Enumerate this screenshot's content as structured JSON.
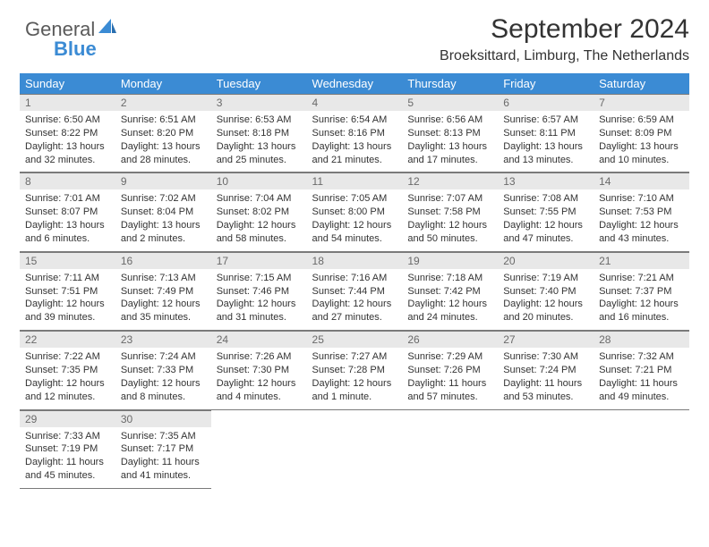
{
  "brand": {
    "text1": "General",
    "text2": "Blue"
  },
  "header": {
    "title": "September 2024",
    "location": "Broeksittard, Limburg, The Netherlands"
  },
  "colors": {
    "header_bg": "#3b8bd4",
    "header_text": "#ffffff",
    "daynum_bg": "#e8e8e8",
    "daynum_text": "#6a6a6a",
    "border": "#7a7a7a",
    "body_text": "#333333",
    "page_bg": "#ffffff"
  },
  "dow": [
    "Sunday",
    "Monday",
    "Tuesday",
    "Wednesday",
    "Thursday",
    "Friday",
    "Saturday"
  ],
  "weeks": [
    [
      {
        "n": "1",
        "sr": "6:50 AM",
        "ss": "8:22 PM",
        "dl": "13 hours and 32 minutes."
      },
      {
        "n": "2",
        "sr": "6:51 AM",
        "ss": "8:20 PM",
        "dl": "13 hours and 28 minutes."
      },
      {
        "n": "3",
        "sr": "6:53 AM",
        "ss": "8:18 PM",
        "dl": "13 hours and 25 minutes."
      },
      {
        "n": "4",
        "sr": "6:54 AM",
        "ss": "8:16 PM",
        "dl": "13 hours and 21 minutes."
      },
      {
        "n": "5",
        "sr": "6:56 AM",
        "ss": "8:13 PM",
        "dl": "13 hours and 17 minutes."
      },
      {
        "n": "6",
        "sr": "6:57 AM",
        "ss": "8:11 PM",
        "dl": "13 hours and 13 minutes."
      },
      {
        "n": "7",
        "sr": "6:59 AM",
        "ss": "8:09 PM",
        "dl": "13 hours and 10 minutes."
      }
    ],
    [
      {
        "n": "8",
        "sr": "7:01 AM",
        "ss": "8:07 PM",
        "dl": "13 hours and 6 minutes."
      },
      {
        "n": "9",
        "sr": "7:02 AM",
        "ss": "8:04 PM",
        "dl": "13 hours and 2 minutes."
      },
      {
        "n": "10",
        "sr": "7:04 AM",
        "ss": "8:02 PM",
        "dl": "12 hours and 58 minutes."
      },
      {
        "n": "11",
        "sr": "7:05 AM",
        "ss": "8:00 PM",
        "dl": "12 hours and 54 minutes."
      },
      {
        "n": "12",
        "sr": "7:07 AM",
        "ss": "7:58 PM",
        "dl": "12 hours and 50 minutes."
      },
      {
        "n": "13",
        "sr": "7:08 AM",
        "ss": "7:55 PM",
        "dl": "12 hours and 47 minutes."
      },
      {
        "n": "14",
        "sr": "7:10 AM",
        "ss": "7:53 PM",
        "dl": "12 hours and 43 minutes."
      }
    ],
    [
      {
        "n": "15",
        "sr": "7:11 AM",
        "ss": "7:51 PM",
        "dl": "12 hours and 39 minutes."
      },
      {
        "n": "16",
        "sr": "7:13 AM",
        "ss": "7:49 PM",
        "dl": "12 hours and 35 minutes."
      },
      {
        "n": "17",
        "sr": "7:15 AM",
        "ss": "7:46 PM",
        "dl": "12 hours and 31 minutes."
      },
      {
        "n": "18",
        "sr": "7:16 AM",
        "ss": "7:44 PM",
        "dl": "12 hours and 27 minutes."
      },
      {
        "n": "19",
        "sr": "7:18 AM",
        "ss": "7:42 PM",
        "dl": "12 hours and 24 minutes."
      },
      {
        "n": "20",
        "sr": "7:19 AM",
        "ss": "7:40 PM",
        "dl": "12 hours and 20 minutes."
      },
      {
        "n": "21",
        "sr": "7:21 AM",
        "ss": "7:37 PM",
        "dl": "12 hours and 16 minutes."
      }
    ],
    [
      {
        "n": "22",
        "sr": "7:22 AM",
        "ss": "7:35 PM",
        "dl": "12 hours and 12 minutes."
      },
      {
        "n": "23",
        "sr": "7:24 AM",
        "ss": "7:33 PM",
        "dl": "12 hours and 8 minutes."
      },
      {
        "n": "24",
        "sr": "7:26 AM",
        "ss": "7:30 PM",
        "dl": "12 hours and 4 minutes."
      },
      {
        "n": "25",
        "sr": "7:27 AM",
        "ss": "7:28 PM",
        "dl": "12 hours and 1 minute."
      },
      {
        "n": "26",
        "sr": "7:29 AM",
        "ss": "7:26 PM",
        "dl": "11 hours and 57 minutes."
      },
      {
        "n": "27",
        "sr": "7:30 AM",
        "ss": "7:24 PM",
        "dl": "11 hours and 53 minutes."
      },
      {
        "n": "28",
        "sr": "7:32 AM",
        "ss": "7:21 PM",
        "dl": "11 hours and 49 minutes."
      }
    ],
    [
      {
        "n": "29",
        "sr": "7:33 AM",
        "ss": "7:19 PM",
        "dl": "11 hours and 45 minutes."
      },
      {
        "n": "30",
        "sr": "7:35 AM",
        "ss": "7:17 PM",
        "dl": "11 hours and 41 minutes."
      },
      null,
      null,
      null,
      null,
      null
    ]
  ],
  "labels": {
    "sunrise": "Sunrise: ",
    "sunset": "Sunset: ",
    "daylight": "Daylight: "
  }
}
